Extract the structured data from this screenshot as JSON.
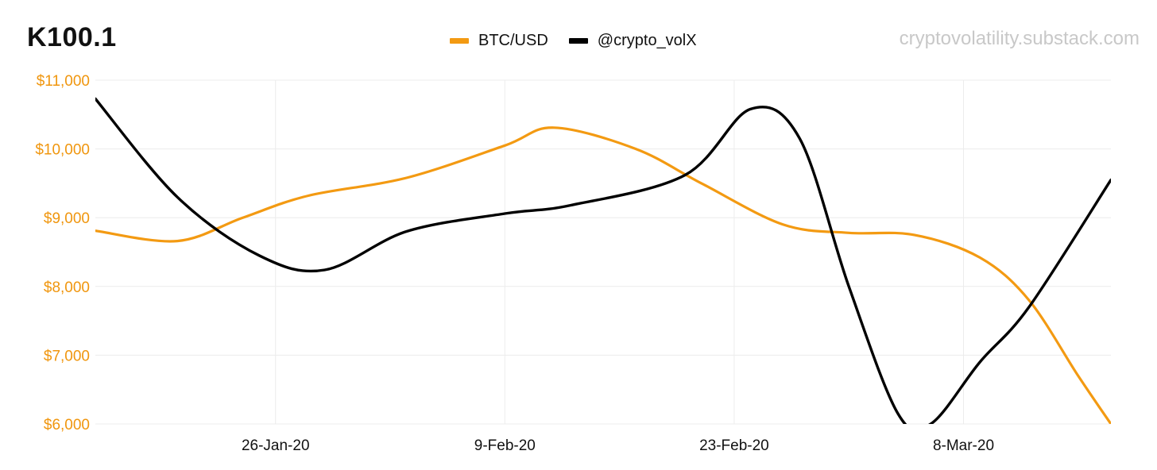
{
  "header": {
    "title": "K100.1",
    "watermark": "cryptovolatility.substack.com"
  },
  "chart_data": {
    "type": "line",
    "title": "K100.1",
    "x_ticks": [
      "26-Jan-20",
      "9-Feb-20",
      "23-Feb-20",
      "8-Mar-20"
    ],
    "xlim": [
      "2020-01-15",
      "2020-03-17"
    ],
    "y_ticks": [
      "$6,000",
      "$7,000",
      "$8,000",
      "$9,000",
      "$10,000",
      "$11,000"
    ],
    "ylim": [
      6000,
      11000
    ],
    "y_axis_color": "#f0960e",
    "grid": true,
    "legend_position": "top-center",
    "series": [
      {
        "name": "BTC/USD",
        "color": "#f39a12",
        "points": [
          {
            "x": "2020-01-15",
            "y": 8810
          },
          {
            "x": "2020-01-20",
            "y": 8660
          },
          {
            "x": "2020-01-24",
            "y": 9000
          },
          {
            "x": "2020-01-28",
            "y": 9320
          },
          {
            "x": "2020-02-03",
            "y": 9580
          },
          {
            "x": "2020-02-09",
            "y": 10050
          },
          {
            "x": "2020-02-12",
            "y": 10310
          },
          {
            "x": "2020-02-17",
            "y": 10000
          },
          {
            "x": "2020-02-21",
            "y": 9500
          },
          {
            "x": "2020-02-26",
            "y": 8900
          },
          {
            "x": "2020-03-01",
            "y": 8780
          },
          {
            "x": "2020-03-05",
            "y": 8750
          },
          {
            "x": "2020-03-09",
            "y": 8420
          },
          {
            "x": "2020-03-12",
            "y": 7800
          },
          {
            "x": "2020-03-15",
            "y": 6700
          },
          {
            "x": "2020-03-17",
            "y": 6000
          }
        ]
      },
      {
        "name": "@crypto_volX",
        "color": "#000000",
        "points": [
          {
            "x": "2020-01-15",
            "y": 10730
          },
          {
            "x": "2020-01-20",
            "y": 9300
          },
          {
            "x": "2020-01-25",
            "y": 8450
          },
          {
            "x": "2020-01-29",
            "y": 8240
          },
          {
            "x": "2020-02-03",
            "y": 8800
          },
          {
            "x": "2020-02-09",
            "y": 9060
          },
          {
            "x": "2020-02-13",
            "y": 9180
          },
          {
            "x": "2020-02-20",
            "y": 9620
          },
          {
            "x": "2020-02-24",
            "y": 10580
          },
          {
            "x": "2020-02-27",
            "y": 10150
          },
          {
            "x": "2020-03-01",
            "y": 8000
          },
          {
            "x": "2020-03-04",
            "y": 6150
          },
          {
            "x": "2020-03-06",
            "y": 6000
          },
          {
            "x": "2020-03-09",
            "y": 6900
          },
          {
            "x": "2020-03-12",
            "y": 7700
          },
          {
            "x": "2020-03-17",
            "y": 9550
          }
        ]
      }
    ]
  }
}
